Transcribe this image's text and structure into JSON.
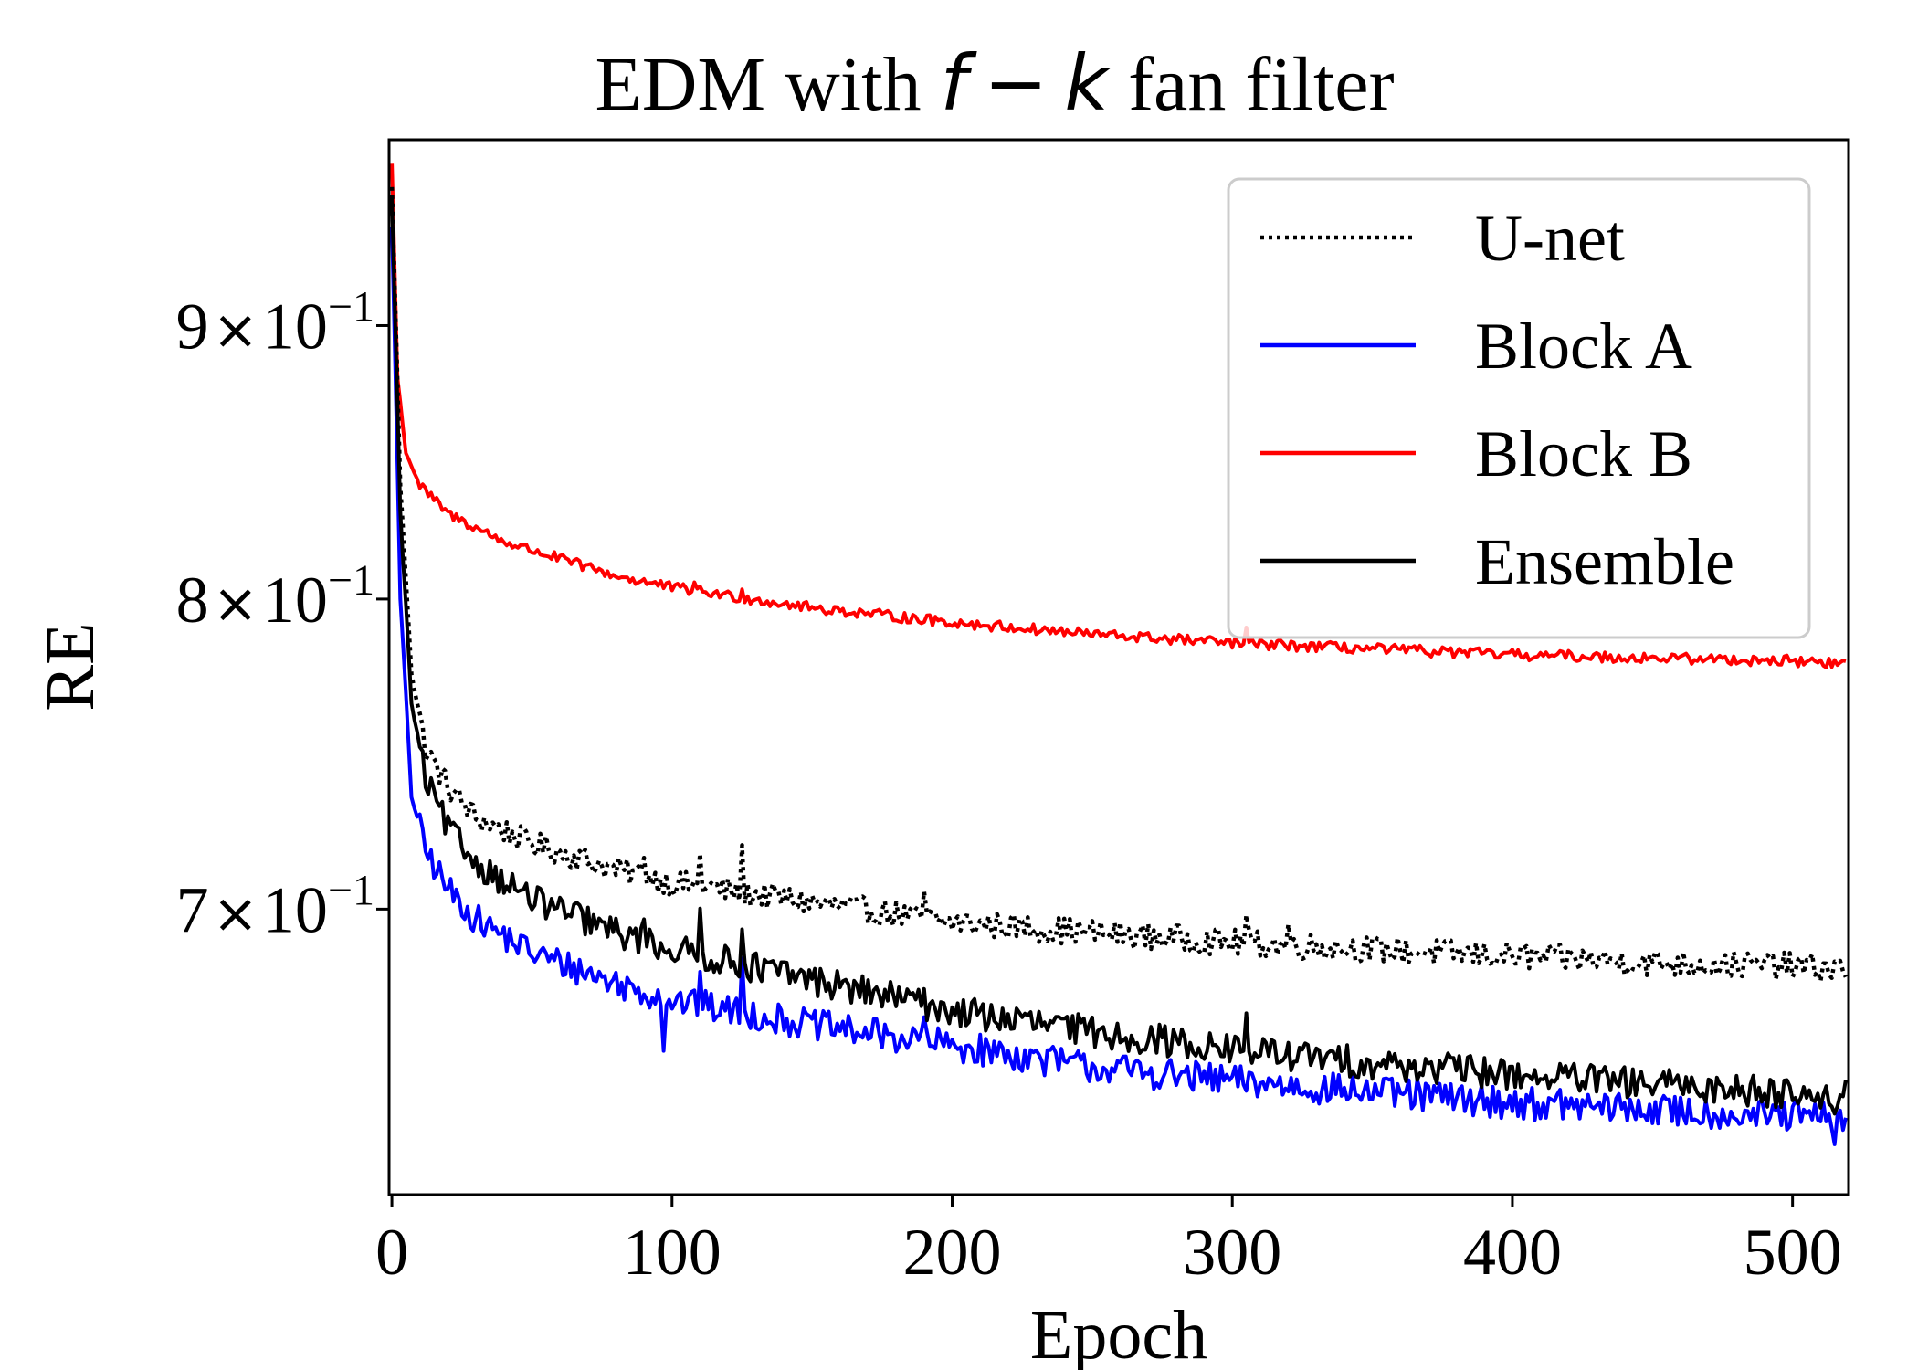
{
  "chart_data": {
    "type": "line",
    "title": {
      "prefix": "EDM with ",
      "math_f": "f",
      "math_op": "−",
      "math_k": "k",
      "suffix": " fan filter"
    },
    "xlabel": "Epoch",
    "ylabel": "RE",
    "y_scale": "log",
    "xlim": [
      -1,
      520
    ],
    "ylim": [
      0.619,
      0.975
    ],
    "x_ticks": [
      0,
      100,
      200,
      300,
      400,
      500
    ],
    "x_tick_labels": [
      "0",
      "100",
      "200",
      "300",
      "400",
      "500"
    ],
    "y_ticks": [
      {
        "value": 0.9,
        "mantissa": "9",
        "times": "×",
        "base": "10",
        "exp": "−1"
      },
      {
        "value": 0.8,
        "mantissa": "8",
        "times": "×",
        "base": "10",
        "exp": "−1"
      },
      {
        "value": 0.7,
        "mantissa": "7",
        "times": "×",
        "base": "10",
        "exp": "−1"
      }
    ],
    "legend": {
      "placement": "top-right"
    },
    "x_max_epoch": 519,
    "series": [
      {
        "name": "U-net",
        "color": "#000000",
        "style": "dotted",
        "anchors": [
          [
            0,
            0.955
          ],
          [
            3,
            0.84
          ],
          [
            7,
            0.775
          ],
          [
            12,
            0.75
          ],
          [
            20,
            0.738
          ],
          [
            30,
            0.728
          ],
          [
            50,
            0.72
          ],
          [
            80,
            0.712
          ],
          [
            100,
            0.708
          ],
          [
            150,
            0.702
          ],
          [
            200,
            0.696
          ],
          [
            250,
            0.693
          ],
          [
            300,
            0.69
          ],
          [
            350,
            0.688
          ],
          [
            400,
            0.686
          ],
          [
            450,
            0.684
          ],
          [
            500,
            0.683
          ],
          [
            519,
            0.682
          ]
        ],
        "noise": 0.004,
        "spikes": [
          [
            90,
            0.009
          ],
          [
            110,
            0.01
          ],
          [
            125,
            0.011
          ],
          [
            190,
            0.008
          ],
          [
            305,
            0.008
          ],
          [
            320,
            0.006
          ]
        ]
      },
      {
        "name": "Block A",
        "color": "#0000ff",
        "style": "solid",
        "anchors": [
          [
            0,
            0.94
          ],
          [
            3,
            0.8
          ],
          [
            7,
            0.735
          ],
          [
            12,
            0.718
          ],
          [
            20,
            0.706
          ],
          [
            30,
            0.697
          ],
          [
            50,
            0.687
          ],
          [
            80,
            0.678
          ],
          [
            100,
            0.673
          ],
          [
            150,
            0.666
          ],
          [
            200,
            0.66
          ],
          [
            250,
            0.654
          ],
          [
            300,
            0.65
          ],
          [
            350,
            0.647
          ],
          [
            400,
            0.644
          ],
          [
            450,
            0.642
          ],
          [
            500,
            0.64
          ],
          [
            519,
            0.64
          ]
        ],
        "noise": 0.0045,
        "spikes": [
          [
            110,
            0.012
          ],
          [
            125,
            0.014
          ],
          [
            97,
            -0.012
          ],
          [
            190,
            0.008
          ],
          [
            515,
            -0.01
          ]
        ]
      },
      {
        "name": "Block B",
        "color": "#ff0000",
        "style": "solid",
        "anchors": [
          [
            0,
            0.965
          ],
          [
            2,
            0.88
          ],
          [
            5,
            0.852
          ],
          [
            10,
            0.84
          ],
          [
            20,
            0.83
          ],
          [
            40,
            0.82
          ],
          [
            60,
            0.814
          ],
          [
            80,
            0.808
          ],
          [
            100,
            0.804
          ],
          [
            150,
            0.797
          ],
          [
            200,
            0.792
          ],
          [
            250,
            0.788
          ],
          [
            300,
            0.785
          ],
          [
            350,
            0.783
          ],
          [
            400,
            0.781
          ],
          [
            450,
            0.78
          ],
          [
            500,
            0.779
          ],
          [
            519,
            0.778
          ]
        ],
        "noise": 0.0018,
        "spikes": [
          [
            108,
            0.004
          ],
          [
            125,
            0.003
          ],
          [
            305,
            0.004
          ]
        ]
      },
      {
        "name": "Ensemble",
        "color": "#000000",
        "style": "solid",
        "anchors": [
          [
            0,
            0.95
          ],
          [
            3,
            0.83
          ],
          [
            7,
            0.765
          ],
          [
            12,
            0.74
          ],
          [
            20,
            0.725
          ],
          [
            30,
            0.714
          ],
          [
            50,
            0.703
          ],
          [
            80,
            0.693
          ],
          [
            100,
            0.688
          ],
          [
            150,
            0.679
          ],
          [
            200,
            0.67
          ],
          [
            250,
            0.664
          ],
          [
            300,
            0.659
          ],
          [
            350,
            0.655
          ],
          [
            400,
            0.652
          ],
          [
            450,
            0.649
          ],
          [
            500,
            0.647
          ],
          [
            519,
            0.646
          ]
        ],
        "noise": 0.0045,
        "spikes": [
          [
            90,
            0.01
          ],
          [
            110,
            0.012
          ],
          [
            125,
            0.013
          ],
          [
            190,
            0.008
          ],
          [
            305,
            0.01
          ],
          [
            515,
            -0.008
          ]
        ]
      }
    ]
  }
}
